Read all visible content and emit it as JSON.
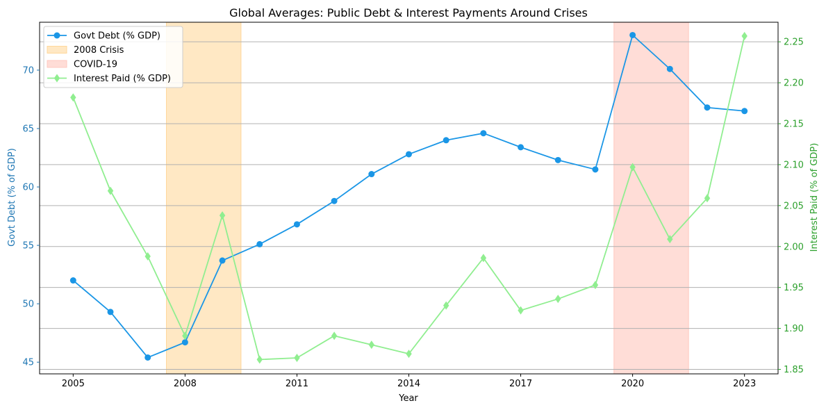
{
  "chart_data": {
    "type": "line",
    "title": "Global Averages: Public Debt & Interest Payments Around Crises",
    "xlabel": "Year",
    "ylabel_left": "Govt Debt (% of GDP)",
    "ylabel_right": "Interest Paid (% of GDP)",
    "x": [
      2005,
      2006,
      2007,
      2008,
      2009,
      2010,
      2011,
      2012,
      2013,
      2014,
      2015,
      2016,
      2017,
      2018,
      2019,
      2020,
      2021,
      2022,
      2023
    ],
    "xlim": [
      2004.1,
      2023.9
    ],
    "x_ticks": [
      2005,
      2008,
      2011,
      2014,
      2017,
      2020,
      2023
    ],
    "y_left_lim": [
      44.0,
      74.1
    ],
    "y_left_ticks": [
      45,
      50,
      55,
      60,
      65,
      70
    ],
    "y_right_lim": [
      1.8445,
      2.2739
    ],
    "y_right_ticks": [
      1.85,
      1.9,
      1.95,
      2.0,
      2.05,
      2.1,
      2.15,
      2.2,
      2.25
    ],
    "y_right_tick_labels": [
      "1.85",
      "1.90",
      "1.95",
      "2.00",
      "2.05",
      "2.10",
      "2.15",
      "2.20",
      "2.25"
    ],
    "grid": "right-axis horizontal",
    "legend_position": "top-left",
    "series": [
      {
        "name": "Govt Debt (% GDP)",
        "axis": "left",
        "color": "#1a96e6",
        "marker": "circle",
        "values": [
          52.0,
          49.3,
          45.4,
          46.7,
          53.7,
          55.1,
          56.8,
          58.8,
          61.1,
          62.8,
          64.0,
          64.6,
          63.4,
          62.3,
          61.5,
          73.0,
          70.1,
          66.8,
          66.5
        ]
      },
      {
        "name": "Interest Paid (% GDP)",
        "axis": "right",
        "color": "#90ee90",
        "marker": "diamond",
        "values": [
          2.182,
          2.068,
          1.988,
          1.891,
          2.038,
          1.862,
          1.864,
          1.891,
          1.88,
          1.869,
          1.928,
          1.986,
          1.922,
          1.936,
          1.953,
          2.097,
          2.009,
          2.059,
          2.257
        ]
      }
    ],
    "shaded_regions": [
      {
        "name": "2008 Crisis",
        "x_start": 2007.5,
        "x_end": 2009.5,
        "color": "#ffe8c4",
        "border": "#ffd79a"
      },
      {
        "name": "COVID-19",
        "x_start": 2019.5,
        "x_end": 2021.5,
        "color": "#ffddd7",
        "border": "#ffc8bf"
      }
    ],
    "left_axis_color": "#1f77b4",
    "right_axis_color": "#2ca02c"
  }
}
